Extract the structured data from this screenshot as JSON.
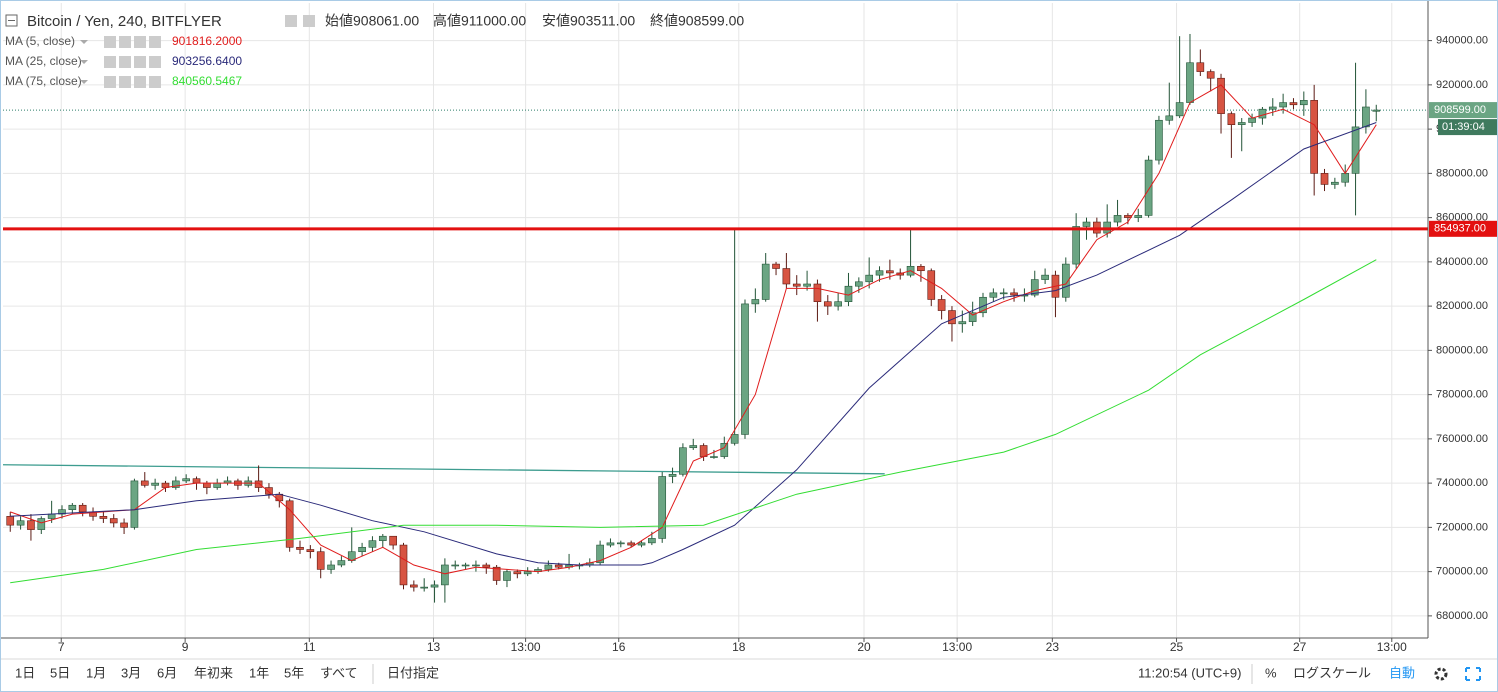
{
  "header": {
    "symbol": "Bitcoin / Yen, 240, BITFLYER",
    "ohlc": [
      {
        "label": "始値",
        "value": "908061.00"
      },
      {
        "label": "高値",
        "value": "911000.00"
      },
      {
        "label": "安値",
        "value": "903511.00"
      },
      {
        "label": "終値",
        "value": "908599.00"
      }
    ]
  },
  "toolbar": {
    "ranges": [
      "1日",
      "5日",
      "1月",
      "3月",
      "6月",
      "年初来",
      "1年",
      "5年",
      "すべて"
    ],
    "date_pick": "日付指定",
    "clock": "11:20:54 (UTC+9)",
    "percent": "%",
    "log": "ログスケール",
    "auto": "自動"
  },
  "chart_data": {
    "type": "candlestick",
    "up_color": "#6ba583",
    "up_border": "#225437",
    "down_color": "#d75442",
    "down_border": "#5b1a13",
    "grid": true,
    "xlim": [
      -0.7,
      137
    ],
    "ylim": [
      670000,
      957000
    ],
    "yticks": [
      {
        "value": 680000,
        "label": "680000.00"
      },
      {
        "value": 700000,
        "label": "700000.00"
      },
      {
        "value": 720000,
        "label": "720000.00"
      },
      {
        "value": 740000,
        "label": "740000.00"
      },
      {
        "value": 760000,
        "label": "760000.00"
      },
      {
        "value": 780000,
        "label": "780000.00"
      },
      {
        "value": 800000,
        "label": "800000.00"
      },
      {
        "value": 820000,
        "label": "820000.00"
      },
      {
        "value": 840000,
        "label": "840000.00"
      },
      {
        "value": 860000,
        "label": "860000.00"
      },
      {
        "value": 880000,
        "label": "880000.00"
      },
      {
        "value": 900000,
        "label": "900000.00"
      },
      {
        "value": 920000,
        "label": "920000.00"
      },
      {
        "value": 940000,
        "label": "940000.00"
      }
    ],
    "xticks": [
      {
        "value": 4.93,
        "label": "7"
      },
      {
        "value": 16.9,
        "label": "9"
      },
      {
        "value": 28.9,
        "label": "11"
      },
      {
        "value": 40.9,
        "label": "13"
      },
      {
        "value": 49.8,
        "label": "13:00"
      },
      {
        "value": 58.8,
        "label": "16"
      },
      {
        "value": 70.4,
        "label": "18"
      },
      {
        "value": 82.5,
        "label": "20"
      },
      {
        "value": 91.5,
        "label": "13:00"
      },
      {
        "value": 100.7,
        "label": "23"
      },
      {
        "value": 112.7,
        "label": "25"
      },
      {
        "value": 124.6,
        "label": "27"
      },
      {
        "value": 133.5,
        "label": "13:00"
      }
    ],
    "open": [
      725000,
      721000,
      723000,
      719000,
      724000,
      726000,
      728000,
      730000,
      727000,
      725000,
      724000,
      722000,
      720000,
      741000,
      739000,
      740000,
      738000,
      741000,
      742000,
      740000,
      738000,
      740000,
      741000,
      739000,
      741000,
      738000,
      735000,
      732000,
      711000,
      710000,
      709000,
      701000,
      703000,
      705000,
      709000,
      711000,
      714000,
      716000,
      712000,
      694000,
      693000,
      693000,
      694000,
      703000,
      703000,
      703000,
      703000,
      702000,
      696000,
      700000,
      699000,
      700000,
      701000,
      703000,
      702000,
      703000,
      703000,
      704000,
      712000,
      713000,
      713000,
      712000,
      713000,
      715000,
      743000,
      744000,
      756000,
      757000,
      752000,
      752000,
      758000,
      762000,
      821000,
      823000,
      839000,
      837000,
      830000,
      829000,
      830000,
      822000,
      820000,
      822000,
      829000,
      831000,
      834000,
      836000,
      835000,
      834000,
      838000,
      836000,
      823000,
      818000,
      812000,
      813000,
      817000,
      824000,
      826000,
      826000,
      825000,
      825000,
      832000,
      834000,
      824000,
      839000,
      856000,
      858000,
      853000,
      858000,
      861000,
      860000,
      861000,
      886000,
      904000,
      906000,
      912000,
      930000,
      926000,
      923000,
      907000,
      902000,
      903000,
      905000,
      909000,
      910000,
      912000,
      911000,
      913000,
      880000,
      875000,
      876000,
      880000,
      901000,
      908061
    ],
    "high": [
      727000,
      725000,
      726000,
      725000,
      732000,
      730000,
      731000,
      731000,
      729000,
      727000,
      726000,
      724000,
      742000,
      745000,
      742000,
      741000,
      743000,
      744000,
      743000,
      741000,
      742000,
      743000,
      742000,
      743000,
      748000,
      740000,
      736000,
      733000,
      714000,
      712000,
      711000,
      705000,
      707000,
      720000,
      713000,
      716000,
      717000,
      716000,
      713000,
      696000,
      697000,
      696000,
      706000,
      705000,
      704000,
      705000,
      704000,
      703000,
      701000,
      701000,
      702000,
      702000,
      705000,
      704000,
      708000,
      704000,
      706000,
      714000,
      715000,
      714000,
      714000,
      714000,
      718000,
      745000,
      747000,
      758000,
      760000,
      758000,
      755000,
      761000,
      855000,
      823000,
      828000,
      844000,
      840000,
      844000,
      834000,
      836000,
      832000,
      825000,
      826000,
      835000,
      833000,
      842000,
      838000,
      841000,
      837000,
      855000,
      839000,
      837000,
      825000,
      820000,
      818000,
      822000,
      826000,
      828000,
      828000,
      828000,
      828000,
      836000,
      837000,
      836000,
      842000,
      862000,
      860000,
      860000,
      866000,
      868000,
      862000,
      864000,
      888000,
      906000,
      921000,
      942000,
      943000,
      936000,
      927000,
      925000,
      908000,
      905000,
      907000,
      910000,
      914000,
      916000,
      914000,
      917000,
      920000,
      882000,
      878000,
      884000,
      930000,
      918000,
      911000
    ],
    "low": [
      718000,
      719000,
      714000,
      717000,
      722000,
      724000,
      726000,
      725000,
      723000,
      722000,
      720000,
      717000,
      719000,
      738000,
      737000,
      736000,
      737000,
      740000,
      737000,
      735000,
      737000,
      739000,
      737000,
      738000,
      736000,
      733000,
      729000,
      709000,
      708000,
      706000,
      697000,
      699000,
      702000,
      704000,
      707000,
      709000,
      711000,
      710000,
      692000,
      691000,
      691000,
      686000,
      686000,
      701000,
      701000,
      700000,
      699000,
      694000,
      693000,
      697000,
      698000,
      699000,
      700000,
      701000,
      701000,
      701000,
      702000,
      703000,
      711000,
      711000,
      711000,
      711000,
      712000,
      713000,
      740000,
      743000,
      755000,
      750000,
      751000,
      751000,
      757000,
      760000,
      817000,
      822000,
      834000,
      828000,
      825000,
      827000,
      813000,
      816000,
      818000,
      820000,
      826000,
      828000,
      831000,
      832000,
      832000,
      833000,
      831000,
      820000,
      814000,
      804000,
      808000,
      811000,
      815000,
      822000,
      823000,
      822000,
      822000,
      824000,
      830000,
      815000,
      822000,
      837000,
      850000,
      851000,
      851000,
      856000,
      857000,
      858000,
      860000,
      884000,
      902000,
      905000,
      911000,
      924000,
      917000,
      898000,
      887000,
      890000,
      901000,
      902000,
      906000,
      907000,
      909000,
      906000,
      870000,
      872000,
      873000,
      874000,
      861000,
      898000,
      903511
    ],
    "close": [
      721000,
      723000,
      719000,
      724000,
      726000,
      728000,
      730000,
      727000,
      725000,
      724000,
      722000,
      720000,
      741000,
      739000,
      740000,
      738000,
      741000,
      742000,
      740000,
      738000,
      740000,
      741000,
      739000,
      741000,
      738000,
      735000,
      732000,
      711000,
      710000,
      709000,
      701000,
      703000,
      705000,
      709000,
      711000,
      714000,
      716000,
      712000,
      694000,
      693000,
      693000,
      694000,
      703000,
      703000,
      703000,
      703000,
      702000,
      696000,
      700000,
      699000,
      700000,
      701000,
      703000,
      702000,
      703000,
      703000,
      704000,
      712000,
      713000,
      713000,
      712000,
      713000,
      715000,
      743000,
      744000,
      756000,
      757000,
      752000,
      752000,
      758000,
      762000,
      821000,
      823000,
      839000,
      837000,
      830000,
      829000,
      830000,
      822000,
      820000,
      822000,
      829000,
      831000,
      834000,
      836000,
      835000,
      834000,
      838000,
      836000,
      823000,
      818000,
      812000,
      813000,
      817000,
      824000,
      826000,
      826000,
      825000,
      825000,
      832000,
      834000,
      824000,
      839000,
      856000,
      858000,
      853000,
      858000,
      861000,
      860000,
      861000,
      886000,
      904000,
      906000,
      912000,
      930000,
      926000,
      923000,
      907000,
      902000,
      903000,
      905000,
      909000,
      910000,
      912000,
      911000,
      913000,
      880000,
      875000,
      876000,
      880000,
      901000,
      910000,
      908599
    ],
    "series": [
      {
        "name": "MA (5, close)",
        "value_label": "901816.2000",
        "color": "#e01c1c",
        "x": [
          0,
          3,
          6,
          9,
          12,
          15,
          18,
          21,
          24,
          27,
          30,
          33,
          36,
          39,
          42,
          45,
          48,
          51,
          54,
          57,
          60,
          63,
          66,
          69,
          72,
          75,
          78,
          81,
          84,
          87,
          90,
          93,
          96,
          99,
          102,
          105,
          108,
          111,
          114,
          117,
          120,
          123,
          126,
          129,
          132
        ],
        "values": [
          727000,
          722000,
          726000,
          727000,
          728000,
          738000,
          740000,
          740000,
          740000,
          728000,
          712000,
          705000,
          711000,
          703000,
          699000,
          702000,
          701000,
          700000,
          702000,
          705000,
          711000,
          720000,
          750000,
          756000,
          780000,
          828000,
          828000,
          825000,
          832000,
          836000,
          828000,
          816000,
          822000,
          827000,
          830000,
          850000,
          858000,
          880000,
          912000,
          920000,
          905000,
          909000,
          902000,
          880000,
          902000
        ]
      },
      {
        "name": "MA (25, close)",
        "value_label": "903256.6400",
        "color": "#2a2a7a",
        "x": [
          0,
          12,
          18,
          26,
          30,
          35,
          40,
          47,
          51,
          55,
          61,
          62,
          65,
          70,
          76,
          83,
          90,
          96,
          101,
          105,
          113,
          118,
          125,
          132
        ],
        "values": [
          725000,
          728000,
          732000,
          735000,
          730000,
          723000,
          718000,
          708000,
          704000,
          703000,
          703000,
          704000,
          710000,
          721000,
          746000,
          783000,
          812000,
          824000,
          827000,
          834000,
          852000,
          868000,
          891000,
          903000
        ]
      },
      {
        "name": "MA (75, close)",
        "value_label": "840560.5467",
        "color": "#33dd33",
        "x": [
          0,
          9,
          18,
          28,
          38,
          47,
          57,
          67,
          76,
          86,
          96,
          101,
          110,
          115,
          125,
          132
        ],
        "values": [
          695000,
          701000,
          710000,
          715000,
          721000,
          721000,
          720000,
          721000,
          735000,
          745000,
          754000,
          762000,
          782000,
          798000,
          823000,
          841000
        ]
      }
    ],
    "hlines": [
      {
        "value": 854937,
        "label": "854937.00",
        "color": "#e31010"
      }
    ],
    "trendline": {
      "x": [
        -0.7,
        84.5
      ],
      "values": [
        748300,
        744200
      ],
      "color": "#3d9c8f"
    },
    "last_price": {
      "value": 908599,
      "label": "908599.00",
      "countdown": "01:39:04"
    }
  }
}
